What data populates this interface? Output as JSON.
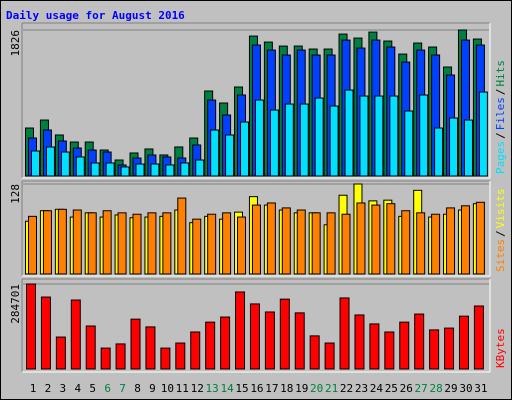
{
  "title": "Daily usage for August 2016",
  "legend_separator": "/",
  "highlight": [
    5,
    6,
    12,
    13,
    19,
    20,
    26,
    27
  ],
  "highlight_color": "#008040",
  "chart_data": [
    {
      "type": "bar",
      "ylim": [
        0,
        1826
      ],
      "yticks": [
        1826
      ],
      "series": [
        {
          "name": "Hits",
          "color": "#008040",
          "values": [
            600,
            700,
            513,
            425,
            425,
            325,
            200,
            288,
            338,
            263,
            363,
            475,
            1063,
            913,
            1113,
            1750,
            1675,
            1625,
            1625,
            1588,
            1588,
            1775,
            1725,
            1800,
            1688,
            1525,
            1663,
            1613,
            1363,
            1826,
            1713
          ]
        },
        {
          "name": "Files",
          "color": "#0040ff",
          "values": [
            475,
            575,
            438,
            350,
            325,
            300,
            138,
            225,
            263,
            238,
            225,
            388,
            950,
            763,
            1013,
            1638,
            1575,
            1513,
            1575,
            1513,
            1513,
            1700,
            1600,
            1700,
            1613,
            1425,
            1575,
            1513,
            1263,
            1700,
            1638
          ]
        },
        {
          "name": "Pages",
          "color": "#00e0ff",
          "values": [
            313,
            363,
            300,
            238,
            163,
            163,
            113,
            150,
            150,
            138,
            163,
            200,
            575,
            513,
            675,
            950,
            825,
            900,
            900,
            975,
            875,
            1075,
            1000,
            1000,
            1000,
            813,
            1013,
            600,
            725,
            700,
            1050
          ]
        }
      ]
    },
    {
      "type": "bar",
      "ylim": [
        0,
        128
      ],
      "yticks": [
        128
      ],
      "series": [
        {
          "name": "Visits",
          "color": "#ffff00",
          "values": [
            75,
            90,
            92,
            81,
            87,
            81,
            84,
            80,
            81,
            82,
            91,
            73,
            82,
            78,
            88,
            110,
            98,
            91,
            87,
            87,
            70,
            112,
            128,
            104,
            105,
            82,
            119,
            81,
            85,
            91,
            100
          ]
        },
        {
          "name": "Sites",
          "color": "#ff8000",
          "values": [
            82,
            90,
            92,
            91,
            87,
            90,
            87,
            85,
            87,
            87,
            108,
            78,
            85,
            87,
            81,
            98,
            101,
            94,
            91,
            87,
            87,
            85,
            101,
            98,
            100,
            90,
            87,
            85,
            94,
            97,
            102
          ]
        }
      ]
    },
    {
      "type": "bar",
      "ylim": [
        0,
        284701
      ],
      "yticks": [
        284701
      ],
      "categories": [
        "1",
        "2",
        "3",
        "4",
        "5",
        "6",
        "7",
        "8",
        "9",
        "10",
        "11",
        "12",
        "13",
        "14",
        "15",
        "16",
        "17",
        "18",
        "19",
        "20",
        "21",
        "22",
        "23",
        "24",
        "25",
        "26",
        "27",
        "28",
        "29",
        "30",
        "31"
      ],
      "series": [
        {
          "name": "KBytes",
          "color": "#ff0000",
          "values": [
            284701,
            241000,
            107000,
            231000,
            144000,
            70000,
            84000,
            167000,
            141000,
            70000,
            87000,
            124000,
            157000,
            174000,
            258000,
            218000,
            191000,
            234000,
            188000,
            111000,
            87000,
            238000,
            181000,
            151000,
            124000,
            157000,
            184000,
            131000,
            137000,
            177000,
            211000
          ]
        }
      ]
    }
  ]
}
